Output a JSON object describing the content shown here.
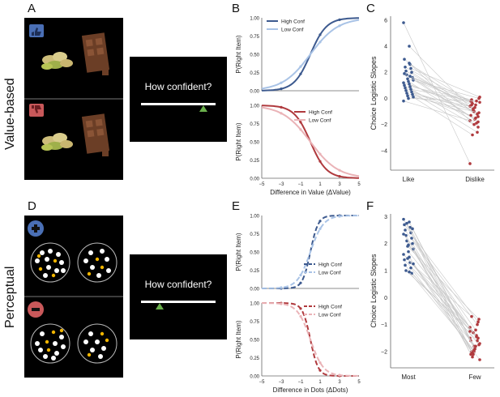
{
  "labels": {
    "A": "A",
    "B": "B",
    "C": "C",
    "D": "D",
    "E": "E",
    "F": "F",
    "row1": "Value-based",
    "row2": "Perceptual"
  },
  "confidence_prompt": "How confident?",
  "colors": {
    "blue": "#3d5a8f",
    "light_blue": "#a9c3e6",
    "red": "#b03a3e",
    "light_red": "#eab3b7",
    "thumb_up": "#4a6fb5",
    "thumb_down": "#c8585a",
    "yellow": "#f0b400"
  },
  "confidence_marker": {
    "value_based": 0.84,
    "perceptual": 0.25
  },
  "chart_data": [
    {
      "id": "B-top",
      "type": "line",
      "ylabel": "P(Right Item)",
      "ylim": [
        0,
        1
      ],
      "xlim": [
        -5,
        5
      ],
      "yticks": [
        "0.00",
        "0.25",
        "0.50",
        "0.75",
        "1.00"
      ],
      "legend": [
        "High Conf",
        "Low Conf"
      ],
      "series": [
        {
          "name": "High Conf",
          "slope": 1.2,
          "style": "solid",
          "color": "#3d5a8f"
        },
        {
          "name": "Low Conf",
          "slope": 0.7,
          "style": "solid",
          "color": "#a9c3e6"
        }
      ]
    },
    {
      "id": "B-bottom",
      "type": "line",
      "ylabel": "P(Right Item)",
      "xlabel": "Difference in Value (ΔValue)",
      "ylim": [
        0,
        1
      ],
      "xlim": [
        -5,
        5
      ],
      "yticks": [
        "0.00",
        "0.25",
        "0.50",
        "0.75",
        "1.00"
      ],
      "xticks": [
        "−5",
        "−3",
        "−1",
        "1",
        "3",
        "5"
      ],
      "legend": [
        "High Conf",
        "Low Conf"
      ],
      "series": [
        {
          "name": "High Conf",
          "slope": -1.2,
          "style": "solid",
          "color": "#b03a3e"
        },
        {
          "name": "Low Conf",
          "slope": -0.7,
          "style": "solid",
          "color": "#eab3b7"
        }
      ]
    },
    {
      "id": "E-top",
      "type": "line",
      "ylabel": "P(Right Item)",
      "ylim": [
        0,
        1
      ],
      "xlim": [
        -5,
        5
      ],
      "yticks": [
        "0.00",
        "0.25",
        "0.50",
        "0.75",
        "1.00"
      ],
      "legend": [
        "High Conf",
        "Low Conf"
      ],
      "series": [
        {
          "name": "High Conf",
          "slope": 2.5,
          "style": "dashed",
          "color": "#3d5a8f"
        },
        {
          "name": "Low Conf",
          "slope": 1.5,
          "style": "dashed",
          "color": "#a9c3e6"
        }
      ]
    },
    {
      "id": "E-bottom",
      "type": "line",
      "ylabel": "P(Right Item)",
      "xlabel": "Difference in Dots (ΔDots)",
      "ylim": [
        0,
        1
      ],
      "xlim": [
        -5,
        5
      ],
      "yticks": [
        "0.00",
        "0.25",
        "0.50",
        "0.75",
        "1.00"
      ],
      "xticks": [
        "−5",
        "−3",
        "−1",
        "1",
        "3",
        "5"
      ],
      "legend": [
        "High Conf",
        "Low Conf"
      ],
      "series": [
        {
          "name": "High Conf",
          "slope": -2.5,
          "style": "dashed",
          "color": "#b03a3e"
        },
        {
          "name": "Low Conf",
          "slope": -1.5,
          "style": "dashed",
          "color": "#eab3b7"
        }
      ]
    },
    {
      "id": "C",
      "type": "scatter",
      "ylabel": "Choice Logistic Slopes",
      "categories": [
        "Like",
        "Dislike"
      ],
      "ylim": [
        -5.5,
        6.3
      ],
      "yticks": [
        6,
        4,
        2,
        0,
        -2,
        -4
      ],
      "pairs": [
        [
          5.8,
          -5
        ],
        [
          4,
          -1
        ],
        [
          3,
          -1.4
        ],
        [
          2.6,
          -0.3
        ],
        [
          2.4,
          -0.5
        ],
        [
          2.3,
          0.1
        ],
        [
          2.1,
          -0.8
        ],
        [
          2,
          -1.2
        ],
        [
          1.8,
          -0.2
        ],
        [
          1.6,
          -1.6
        ],
        [
          1.5,
          0
        ],
        [
          1.4,
          -0.4
        ],
        [
          1.3,
          -1.9
        ],
        [
          1.2,
          -0.6
        ],
        [
          1.1,
          -1
        ],
        [
          1,
          -2.2
        ],
        [
          0.9,
          -0.1
        ],
        [
          0.8,
          -1.5
        ],
        [
          0.7,
          -0.3
        ],
        [
          0.6,
          -0.9
        ],
        [
          0.5,
          -2.6
        ],
        [
          0.4,
          -1.3
        ],
        [
          0.3,
          -0.7
        ],
        [
          0.2,
          -1.1
        ],
        [
          0.1,
          -2.8
        ],
        [
          0,
          -0.2
        ],
        [
          -0.2,
          -1.7
        ],
        [
          2.7,
          -2
        ],
        [
          1.9,
          -1.8
        ],
        [
          1.7,
          -0.5
        ]
      ]
    },
    {
      "id": "F",
      "type": "scatter",
      "ylabel": "Choice Logistic Slopes",
      "categories": [
        "Most",
        "Few"
      ],
      "ylim": [
        -2.6,
        3.1
      ],
      "yticks": [
        3,
        2,
        1,
        0,
        -1,
        -2
      ],
      "pairs": [
        [
          2.9,
          -1.5
        ],
        [
          2.8,
          -1.8
        ],
        [
          2.7,
          -0.9
        ],
        [
          2.6,
          -2
        ],
        [
          2.5,
          -1.2
        ],
        [
          2.4,
          -1.7
        ],
        [
          2.3,
          -2.1
        ],
        [
          2.2,
          -1
        ],
        [
          2.1,
          -1.6
        ],
        [
          2,
          -1.9
        ],
        [
          1.9,
          -0.8
        ],
        [
          1.8,
          -2.2
        ],
        [
          1.7,
          -1.4
        ],
        [
          1.6,
          -1.1
        ],
        [
          1.5,
          -2
        ],
        [
          1.4,
          -1.5
        ],
        [
          1.3,
          -0.7
        ],
        [
          1.2,
          -1.8
        ],
        [
          1.1,
          -2.3
        ],
        [
          1,
          -1.3
        ],
        [
          0.9,
          -1.6
        ],
        [
          2.75,
          -2.1
        ],
        [
          2.55,
          -1.9
        ],
        [
          1.45,
          -1.75
        ],
        [
          1.25,
          -2.05
        ],
        [
          1.95,
          -1.45
        ],
        [
          2.35,
          -1.25
        ],
        [
          0.95,
          -1.95
        ]
      ]
    }
  ]
}
